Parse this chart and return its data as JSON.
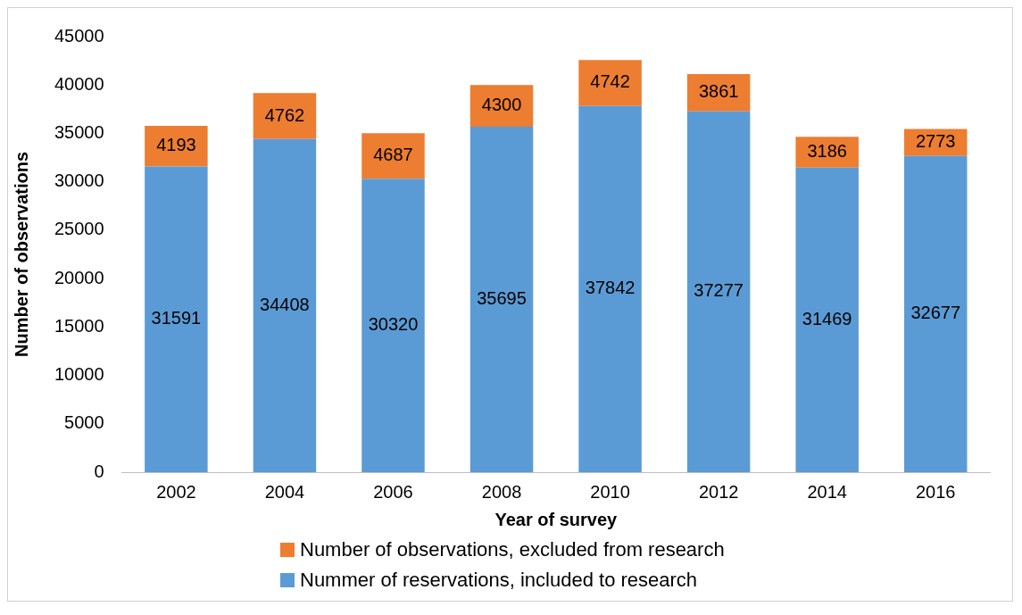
{
  "chart_data": {
    "type": "bar",
    "stacked": true,
    "xlabel": "Year of survey",
    "ylabel": "Number of observations",
    "categories": [
      "2002",
      "2004",
      "2006",
      "2008",
      "2010",
      "2012",
      "2014",
      "2016"
    ],
    "series": [
      {
        "name": "Nummer of reservations, included to research",
        "color": "#5b9bd5",
        "values": [
          31591,
          34408,
          30320,
          35695,
          37842,
          37277,
          31469,
          32677
        ]
      },
      {
        "name": "Number of observations, excluded from research",
        "color": "#ed7d31",
        "values": [
          4193,
          4762,
          4687,
          4300,
          4742,
          3861,
          3186,
          2773
        ]
      }
    ],
    "ylim": [
      0,
      45000
    ],
    "yticks": [
      0,
      5000,
      10000,
      15000,
      20000,
      25000,
      30000,
      35000,
      40000,
      45000
    ],
    "grid": false,
    "legend": "bottom",
    "data_labels": true
  }
}
